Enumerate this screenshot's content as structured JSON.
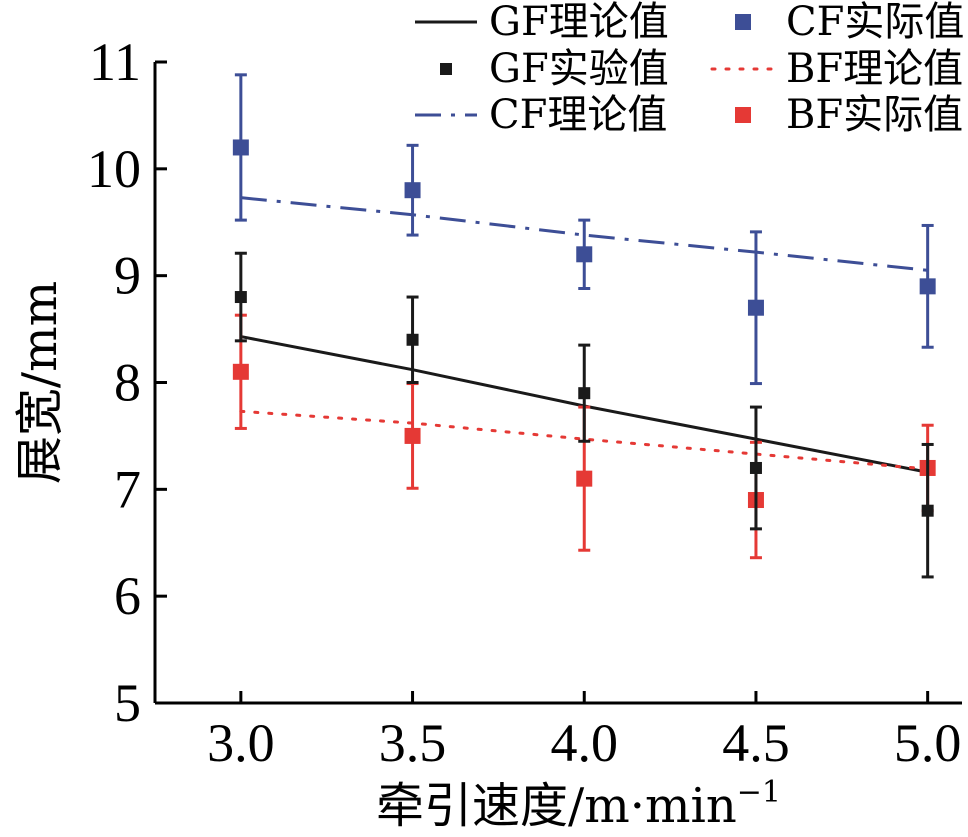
{
  "chart_data": {
    "type": "line",
    "title": "",
    "xlabel": "牵引速度/m·min",
    "xlabel_sup": "−1",
    "ylabel": "展宽/mm",
    "xlim": [
      2.75,
      5.1
    ],
    "ylim": [
      5,
      11
    ],
    "x_ticks": [
      "3.0",
      "3.5",
      "4.0",
      "4.5",
      "5.0"
    ],
    "y_ticks": [
      "5",
      "6",
      "7",
      "8",
      "9",
      "10",
      "11"
    ],
    "grid": false,
    "legend_position": "top-right",
    "series": [
      {
        "name": "GF理论值",
        "kind": "line",
        "style": "solid",
        "color": "#1a1a1a",
        "x": [
          3.0,
          3.5,
          4.0,
          4.5,
          5.0
        ],
        "y": [
          8.43,
          8.12,
          7.78,
          7.47,
          7.16
        ]
      },
      {
        "name": "GF实验值",
        "kind": "points",
        "color": "#1a1a1a",
        "x": [
          3.0,
          3.5,
          4.0,
          4.5,
          5.0
        ],
        "y": [
          8.8,
          8.4,
          7.9,
          7.2,
          6.8
        ],
        "err": [
          0.41,
          0.4,
          0.45,
          0.57,
          0.62
        ]
      },
      {
        "name": "CF理论值",
        "kind": "line",
        "style": "dashdot",
        "color": "#3d4e96",
        "x": [
          3.0,
          3.5,
          4.0,
          4.5,
          5.0
        ],
        "y": [
          9.73,
          9.57,
          9.38,
          9.22,
          9.05
        ]
      },
      {
        "name": "CF实际值",
        "kind": "points",
        "color": "#3d4e96",
        "x": [
          3.0,
          3.5,
          4.0,
          4.5,
          5.0
        ],
        "y": [
          10.2,
          9.8,
          9.2,
          8.7,
          8.9
        ],
        "err": [
          0.68,
          0.42,
          0.32,
          0.71,
          0.57
        ]
      },
      {
        "name": "BF理论值",
        "kind": "line",
        "style": "dotted",
        "color": "#e53935",
        "x": [
          3.0,
          3.5,
          4.0,
          4.5,
          5.0
        ],
        "y": [
          7.73,
          7.62,
          7.47,
          7.33,
          7.19
        ]
      },
      {
        "name": "BF实际值",
        "kind": "points",
        "color": "#e53935",
        "x": [
          3.0,
          3.5,
          4.0,
          4.5,
          5.0
        ],
        "y": [
          8.1,
          7.5,
          7.1,
          6.9,
          7.2
        ],
        "err": [
          0.53,
          0.49,
          0.67,
          0.54,
          0.4
        ]
      }
    ]
  }
}
